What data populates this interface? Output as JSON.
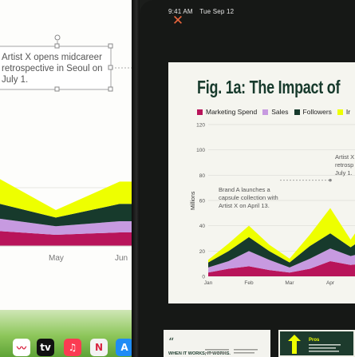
{
  "status_bar": {
    "time": "9:41 AM",
    "date": "Tue Sep 12"
  },
  "left_view": {
    "annotation_text": [
      "Artist X opens midcareer",
      "retrospective in Seoul on",
      "July 1."
    ],
    "x_tick_labels": [
      "May",
      "Jun"
    ]
  },
  "document": {
    "title": "Fig. 1a: The Impact of",
    "legend": [
      {
        "label": "Marketing Spend",
        "color": "#b8145a"
      },
      {
        "label": "Sales",
        "color": "#c79ae0"
      },
      {
        "label": "Followers",
        "color": "#173a2c"
      },
      {
        "label": "Ir",
        "color": "#eeff00"
      }
    ],
    "annotation_brand": [
      "Brand A launches a",
      "capsule collection with",
      "Artist X on April 13."
    ],
    "annotation_artist": [
      "Artist X",
      "retrosp",
      "July 1."
    ]
  },
  "chart_data": {
    "type": "area",
    "title": "Fig. 1a: The Impact of",
    "ylabel": "Millions",
    "ylim": [
      0,
      120
    ],
    "y_ticks": [
      0,
      20,
      40,
      60,
      80,
      100,
      120
    ],
    "categories": [
      "Jan",
      "Feb",
      "Mar",
      "Apr"
    ],
    "x": [
      "Jan",
      "Jan-15",
      "Feb",
      "Feb-15",
      "Mar",
      "Mar-15",
      "Apr",
      "Apr-15",
      "May"
    ],
    "series": [
      {
        "name": "Marketing Spend",
        "color": "#b8145a",
        "values": [
          3,
          6,
          8,
          5,
          3,
          6,
          12,
          9,
          11
        ]
      },
      {
        "name": "Sales",
        "color": "#c79ae0",
        "values": [
          4,
          6,
          12,
          8,
          4,
          8,
          10,
          7,
          9
        ]
      },
      {
        "name": "Followers",
        "color": "#173a2c",
        "values": [
          4,
          8,
          11,
          7,
          4,
          10,
          12,
          7,
          14
        ]
      },
      {
        "name": "Ir",
        "color": "#eeff00",
        "values": [
          2,
          6,
          9,
          5,
          3,
          9,
          20,
          6,
          18
        ]
      }
    ],
    "annotations": [
      {
        "x": "Apr",
        "y": 76,
        "text": "Brand A launches a capsule collection with Artist X on April 13."
      }
    ]
  },
  "dock": {
    "apps": [
      {
        "name": "freeform-icon",
        "glyph": "〰",
        "color": "#ffffff"
      },
      {
        "name": "apple-tv-icon",
        "glyph": "tv",
        "color": "#111111"
      },
      {
        "name": "music-icon",
        "glyph": "♫",
        "color": "#fb3b52"
      },
      {
        "name": "news-icon",
        "glyph": "N",
        "color": "#f3f3f3"
      },
      {
        "name": "app-store-icon",
        "glyph": "A",
        "color": "#1f8cf5"
      }
    ]
  },
  "thumbnails": {
    "first": {
      "quote_mark": "“",
      "heading": "WHEN IT WORKS, IT WORKS."
    },
    "second": {
      "label": "Pros"
    }
  }
}
